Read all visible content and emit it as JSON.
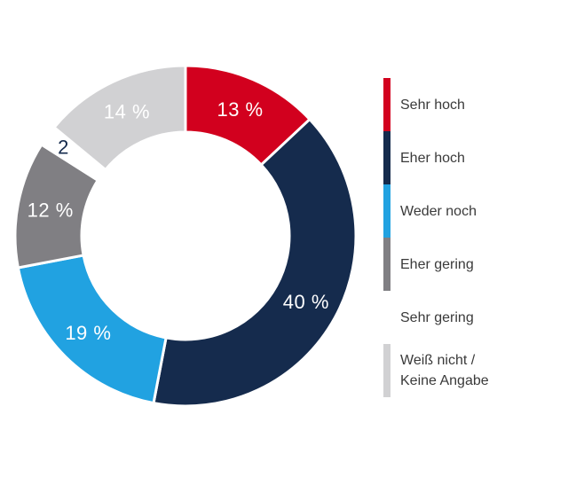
{
  "page": {
    "background_color": "#ffffff",
    "text_color": "#3a3a3a"
  },
  "chart_data": {
    "type": "pie",
    "variant": "donut",
    "title": "",
    "direction": "clockwise",
    "start_angle_deg": 0,
    "donut_hole_ratio": 0.61,
    "legend_position": "right",
    "separator_color": "#ffffff",
    "segments": [
      {
        "label": "Sehr hoch",
        "legend_lines": [
          "Sehr hoch"
        ],
        "value": 13,
        "value_label": "13 %",
        "color": "#d2001e",
        "value_label_color": "#ffffff"
      },
      {
        "label": "Eher hoch",
        "legend_lines": [
          "Eher hoch"
        ],
        "value": 40,
        "value_label": "40 %",
        "color": "#152b4d",
        "value_label_color": "#ffffff"
      },
      {
        "label": "Weder noch",
        "legend_lines": [
          "Weder noch"
        ],
        "value": 19,
        "value_label": "19 %",
        "color": "#21a2e1",
        "value_label_color": "#ffffff"
      },
      {
        "label": "Eher gering",
        "legend_lines": [
          "Eher gering"
        ],
        "value": 12,
        "value_label": "12 %",
        "color": "#807f83",
        "value_label_color": "#ffffff"
      },
      {
        "label": "Sehr gering",
        "legend_lines": [
          "Sehr gering"
        ],
        "value": 2,
        "value_label": "2",
        "color": "#ffffff",
        "value_label_color": "#152b4d",
        "label_radius": 170
      },
      {
        "label": "Weiß nicht / Keine Angabe",
        "legend_lines": [
          "Weiß nicht /",
          "Keine Angabe"
        ],
        "value": 14,
        "value_label": "14 %",
        "color": "#d1d1d3",
        "value_label_color": "#ffffff"
      }
    ]
  }
}
